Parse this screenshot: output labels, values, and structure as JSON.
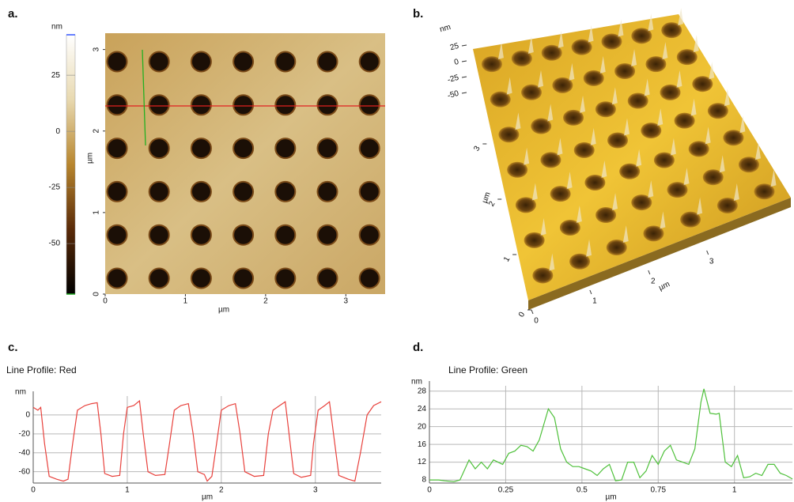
{
  "panels": [
    "a.",
    "b.",
    "c.",
    "d."
  ],
  "chart_data": [
    {
      "type": "image",
      "xlabel": "µm",
      "ylabel": "µm",
      "xlim": [
        0,
        3.49
      ],
      "ylim": [
        0,
        3.2
      ],
      "xticks": [
        0,
        1,
        2,
        3
      ],
      "yticks": [
        0,
        1,
        2,
        3
      ],
      "colorbar_label": "nm",
      "clim": [
        -72.5,
        43
      ],
      "colorbar_ticks": [
        25,
        0,
        -25,
        -50
      ],
      "colormap": [
        "#000000",
        "#5a2a08",
        "#b8862e",
        "#e8d9b0",
        "#ffffff"
      ]
    },
    {
      "type": "surface",
      "xlabel": "µm",
      "ylabel": "µm",
      "zlabel": "nm",
      "xlim": [
        0,
        3.6
      ],
      "ylim": [
        0,
        3.6
      ],
      "zlim": [
        -60,
        35
      ],
      "xticks": [
        0,
        1,
        2,
        3
      ],
      "yticks": [
        0,
        1,
        2,
        3
      ],
      "zticks": [
        25,
        0,
        -25,
        -50
      ]
    },
    {
      "type": "line",
      "title": "Line Profile: Red",
      "xlabel": "µm",
      "ylabel": "nm",
      "color": "#e8413c",
      "grid": true,
      "xlim": [
        0,
        3.7
      ],
      "ylim": [
        -72,
        20
      ],
      "xticks": [
        0,
        1,
        2,
        3
      ],
      "yticks": [
        0,
        -20,
        -40,
        -60
      ],
      "x": [
        0,
        0.05,
        0.08,
        0.12,
        0.17,
        0.25,
        0.32,
        0.37,
        0.42,
        0.47,
        0.55,
        0.62,
        0.68,
        0.72,
        0.76,
        0.84,
        0.92,
        0.96,
        1.0,
        1.07,
        1.13,
        1.17,
        1.22,
        1.3,
        1.4,
        1.45,
        1.5,
        1.57,
        1.65,
        1.7,
        1.75,
        1.82,
        1.85,
        1.9,
        1.95,
        2.0,
        2.08,
        2.15,
        2.2,
        2.25,
        2.35,
        2.45,
        2.5,
        2.55,
        2.62,
        2.68,
        2.72,
        2.77,
        2.85,
        2.95,
        2.98,
        3.03,
        3.1,
        3.15,
        3.2,
        3.25,
        3.35,
        3.42,
        3.48,
        3.55,
        3.62,
        3.7
      ],
      "values": [
        8,
        5,
        8,
        -30,
        -65,
        -68,
        -70,
        -68,
        -30,
        5,
        10,
        12,
        13,
        -20,
        -62,
        -65,
        -64,
        -20,
        8,
        10,
        15,
        -20,
        -60,
        -64,
        -63,
        -30,
        5,
        10,
        12,
        -20,
        -60,
        -63,
        -70,
        -65,
        -30,
        5,
        10,
        12,
        -20,
        -60,
        -65,
        -64,
        -20,
        5,
        10,
        14,
        -20,
        -62,
        -66,
        -64,
        -30,
        5,
        10,
        14,
        -25,
        -64,
        -68,
        -70,
        -40,
        0,
        10,
        14
      ]
    },
    {
      "type": "line",
      "title": "Line Profile: Green",
      "xlabel": "µm",
      "ylabel": "nm",
      "color": "#4ec03a",
      "grid": true,
      "xlim": [
        0,
        1.19
      ],
      "ylim": [
        7.3,
        29.2
      ],
      "xticks": [
        0,
        0.25,
        0.5,
        0.75,
        1
      ],
      "yticks": [
        8,
        12,
        16,
        20,
        24,
        28
      ],
      "x": [
        0,
        0.03,
        0.05,
        0.08,
        0.1,
        0.13,
        0.15,
        0.17,
        0.19,
        0.21,
        0.24,
        0.26,
        0.28,
        0.3,
        0.32,
        0.34,
        0.36,
        0.39,
        0.41,
        0.43,
        0.45,
        0.47,
        0.49,
        0.51,
        0.53,
        0.55,
        0.57,
        0.59,
        0.61,
        0.63,
        0.65,
        0.67,
        0.69,
        0.71,
        0.73,
        0.75,
        0.77,
        0.79,
        0.81,
        0.83,
        0.85,
        0.87,
        0.89,
        0.9,
        0.92,
        0.94,
        0.95,
        0.97,
        0.99,
        1.01,
        1.03,
        1.05,
        1.07,
        1.09,
        1.11,
        1.13,
        1.15,
        1.17,
        1.19
      ],
      "values": [
        8,
        8,
        7.8,
        7.6,
        8,
        12.5,
        10.5,
        12,
        10.5,
        12.5,
        11.5,
        14,
        14.5,
        15.8,
        15.5,
        14.5,
        17,
        24,
        22,
        15,
        12,
        11,
        11,
        10.5,
        10,
        9,
        10.5,
        11.5,
        7.8,
        8,
        12,
        12,
        8.5,
        10,
        13.5,
        11.5,
        14.5,
        15.8,
        12.5,
        12,
        11.5,
        15,
        25.5,
        28.5,
        23,
        22.8,
        23,
        12,
        11,
        13.5,
        8.5,
        8.7,
        9.5,
        9,
        11.5,
        11.5,
        9.5,
        9,
        8.2
      ]
    }
  ]
}
